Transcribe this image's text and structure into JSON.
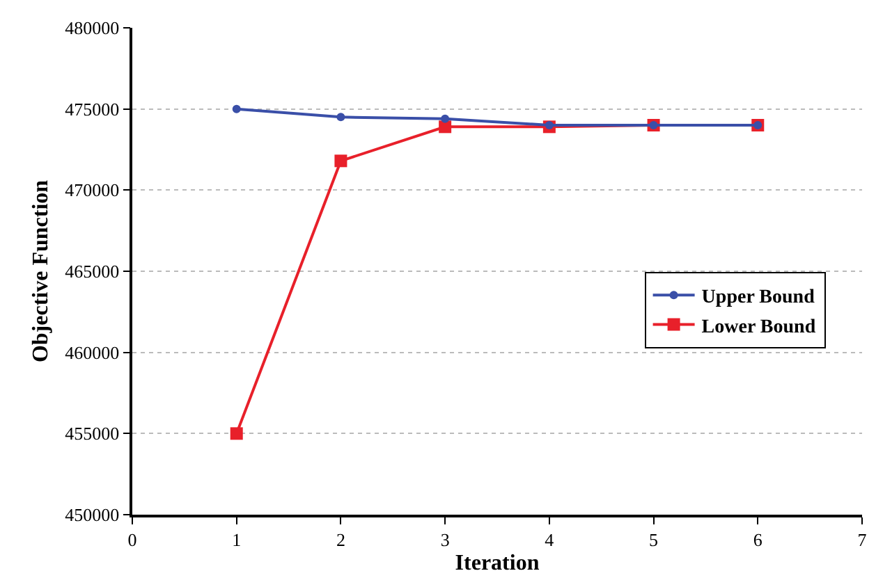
{
  "chart_data": {
    "type": "line",
    "xlabel": "Iteration",
    "ylabel": "Objective Function",
    "x": [
      1,
      2,
      3,
      4,
      5,
      6
    ],
    "series": [
      {
        "name": "Upper Bound",
        "color": "#3a4fa8",
        "marker": "circle",
        "values": [
          475000,
          474500,
          474400,
          474000,
          474000,
          474000
        ]
      },
      {
        "name": "Lower Bound",
        "color": "#e8202a",
        "marker": "square",
        "values": [
          455000,
          471800,
          473900,
          473900,
          474000,
          474000
        ]
      }
    ],
    "xlim": [
      0,
      7
    ],
    "xticks": [
      0,
      1,
      2,
      3,
      4,
      5,
      6,
      7
    ],
    "ylim": [
      450000,
      480000
    ],
    "yticks": [
      450000,
      455000,
      460000,
      465000,
      470000,
      475000,
      480000
    ],
    "grid": "y",
    "legend": "right",
    "line_style": "solid"
  }
}
